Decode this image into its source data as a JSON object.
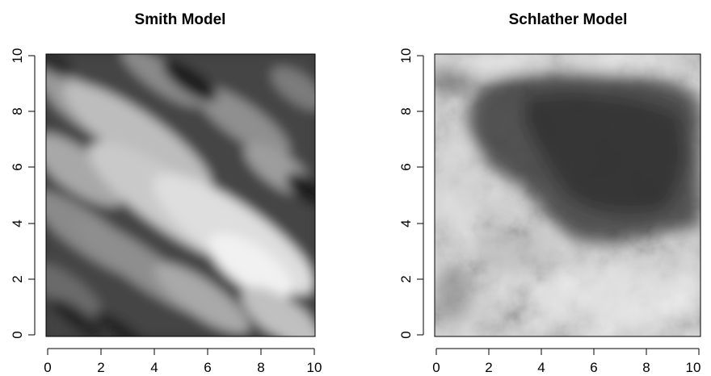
{
  "chart_data": [
    {
      "type": "heatmap",
      "title": "Smith Model",
      "xlabel": "",
      "ylabel": "",
      "xlim": [
        0,
        10
      ],
      "ylim": [
        0,
        10
      ],
      "xticks": [
        0,
        2,
        4,
        6,
        8,
        10
      ],
      "yticks": [
        0,
        2,
        4,
        6,
        8,
        10
      ],
      "colormap": "grayscale",
      "description_values": "simulated max-stable random field (Smith model) with elongated diagonal storm-like ellipses oriented from upper-left to lower-right; brightest region near x=7.5, y=2"
    },
    {
      "type": "heatmap",
      "title": "Schlather Model",
      "xlabel": "",
      "ylabel": "",
      "xlim": [
        0,
        10
      ],
      "ylim": [
        0,
        10
      ],
      "xticks": [
        0,
        2,
        4,
        6,
        8,
        10
      ],
      "yticks": [
        0,
        2,
        4,
        6,
        8,
        10
      ],
      "colormap": "grayscale",
      "description_values": "simulated max-stable random field (Schlather model); dark region in upper-right (x 2-10, y 4-9), light cloudy texture along left edge and bottom"
    }
  ]
}
